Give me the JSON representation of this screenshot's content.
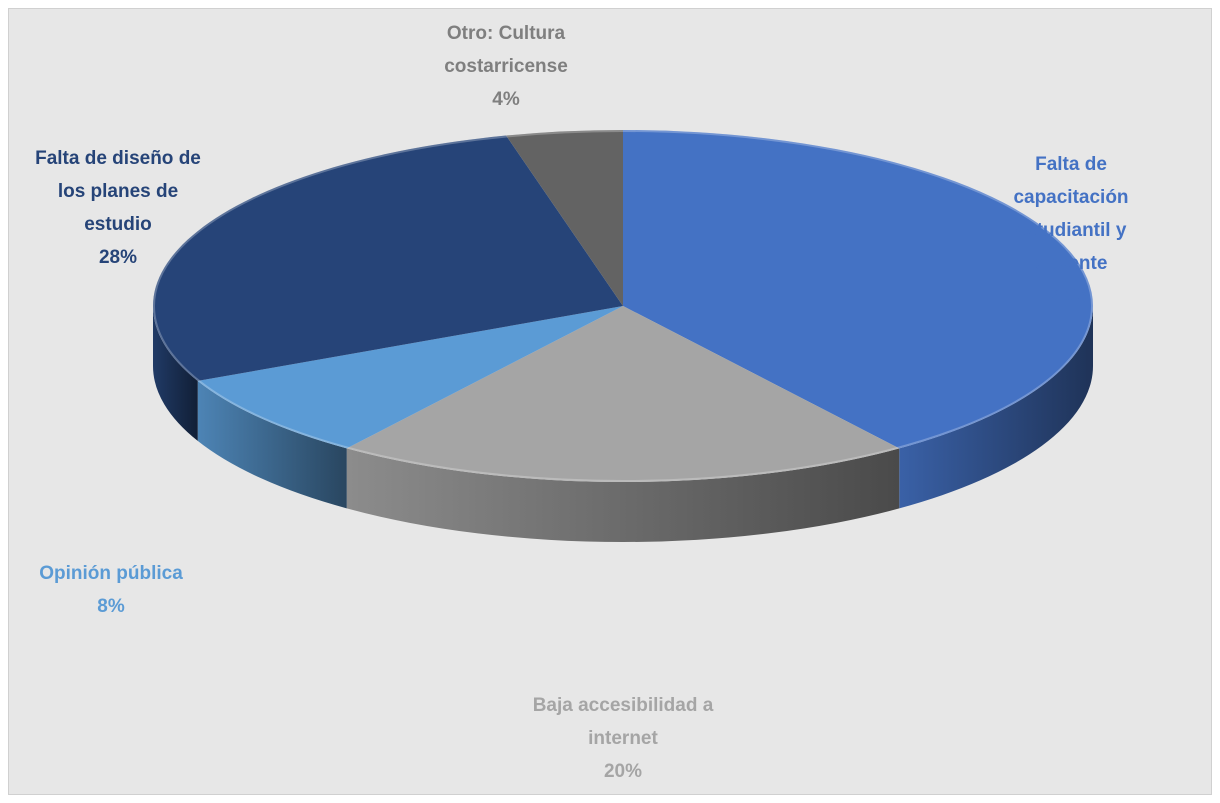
{
  "chart_data": {
    "type": "pie",
    "style": "3d",
    "title": "",
    "legend": "none",
    "slices": [
      {
        "label_lines": [
          "Falta de",
          "capacitación",
          "estudiantil y",
          "docente"
        ],
        "value": 40,
        "percent_label": "40%",
        "color": "#4472c4"
      },
      {
        "label_lines": [
          "Baja accesibilidad a",
          "internet"
        ],
        "value": 20,
        "percent_label": "20%",
        "color": "#a5a5a5"
      },
      {
        "label_lines": [
          "Opinión pública"
        ],
        "value": 8,
        "percent_label": "8%",
        "color": "#5b9bd5"
      },
      {
        "label_lines": [
          "Falta de diseño de",
          "los planes de",
          "estudio"
        ],
        "value": 28,
        "percent_label": "28%",
        "color": "#264478"
      },
      {
        "label_lines": [
          "Otro: Cultura",
          "costarricense"
        ],
        "value": 4,
        "percent_label": "4%",
        "color": "#636363"
      }
    ]
  },
  "colors": {
    "background": "#e7e7e7",
    "label_capacitacion": "#4472c4",
    "label_accesibilidad": "#a5a5a5",
    "label_opinion": "#5b9bd5",
    "label_diseno": "#264478",
    "label_otro": "#7f7f7f"
  }
}
